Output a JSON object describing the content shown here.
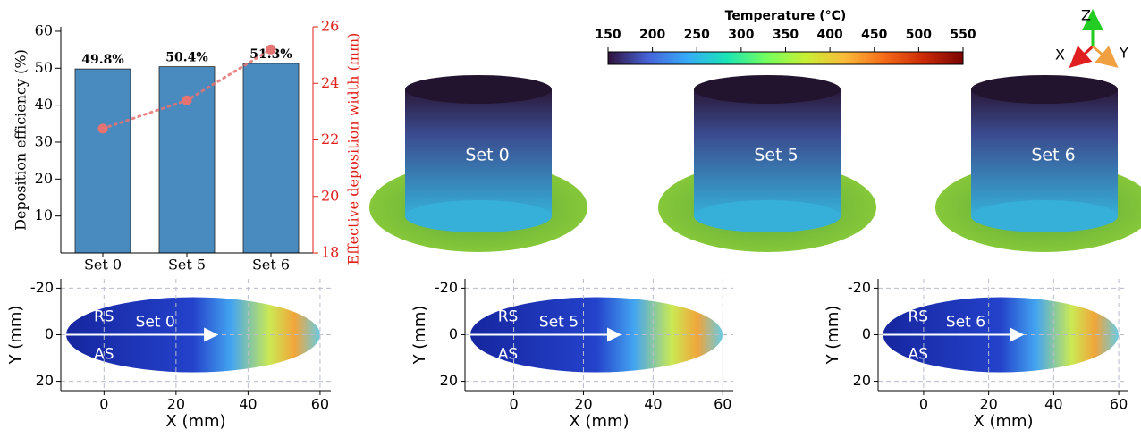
{
  "chart_data": [
    {
      "type": "bar",
      "categories": [
        "Set 0",
        "Set 5",
        "Set 6"
      ],
      "series": [
        {
          "color": "#4a8bbf",
          "values": [
            49.8,
            50.4,
            51.3
          ],
          "value_labels": [
            "49.8%",
            "50.4%",
            "51.3%"
          ]
        },
        {
          "type": "line",
          "axis": "y2",
          "color": "#e57373",
          "values": [
            22.4,
            23.4,
            25.2
          ]
        }
      ],
      "ylabel": "Deposition efficiency (%)",
      "ylim": [
        0,
        61.2
      ],
      "yticks": [
        10,
        20,
        30,
        40,
        50,
        60
      ],
      "y2label": "Effective deposition width (mm)",
      "y2lim": [
        18,
        26
      ],
      "y2ticks": [
        18,
        20,
        22,
        24,
        26
      ],
      "y2color": "#e0201b"
    },
    {
      "type": "colorbar",
      "title": "Temperature (°C)",
      "xlim": [
        150,
        550
      ],
      "xticks": [
        150,
        200,
        250,
        300,
        350,
        400,
        450,
        500,
        550
      ],
      "colors": [
        "#30123b",
        "#4662d7",
        "#36aaf9",
        "#1ae4b6",
        "#72fe5e",
        "#c7ef34",
        "#fabb39",
        "#f66b19",
        "#cb2a04",
        "#7a0403"
      ]
    },
    {
      "type": "image",
      "xlabel": "X (mm)",
      "ylabel": "Y (mm)",
      "xlim": [
        -12,
        63
      ],
      "xticks": [
        0,
        20,
        40,
        60
      ],
      "ylim": [
        24,
        -24
      ],
      "yticks": [
        -20,
        0,
        20
      ],
      "annotations": [
        "RS",
        "AS",
        "Set 0"
      ]
    },
    {
      "type": "image",
      "xlabel": "X (mm)",
      "ylabel": "Y (mm)",
      "xlim": [
        -14,
        63
      ],
      "xticks": [
        0,
        20,
        40,
        60
      ],
      "ylim": [
        24,
        -24
      ],
      "yticks": [
        -20,
        0,
        20
      ],
      "annotations": [
        "RS",
        "AS",
        "Set 5"
      ]
    },
    {
      "type": "image",
      "xlabel": "X (mm)",
      "ylabel": "Y (mm)",
      "xlim": [
        -14,
        63
      ],
      "xticks": [
        0,
        20,
        40,
        60
      ],
      "ylim": [
        24,
        -24
      ],
      "yticks": [
        -20,
        0,
        20
      ],
      "annotations": [
        "RS",
        "AS",
        "Set 6"
      ]
    }
  ],
  "renders": [
    "Set 0",
    "Set 5",
    "Set 6"
  ],
  "triad": [
    "Z",
    "X",
    "Y"
  ]
}
